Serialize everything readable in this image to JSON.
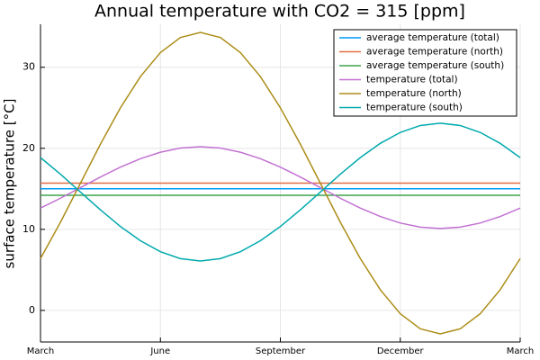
{
  "chart_data": {
    "type": "line",
    "title": "Annual temperature with CO2 = 315 [ppm]",
    "y_label": "surface temperature [°C]",
    "x": [
      0,
      0.5,
      1,
      1.5,
      2,
      2.5,
      3,
      3.5,
      4,
      4.5,
      5,
      5.5,
      6,
      6.5,
      7,
      7.5,
      8,
      8.5,
      9,
      9.5,
      10,
      10.5,
      11,
      11.5,
      12
    ],
    "xlim": [
      0,
      12
    ],
    "xticks": [
      {
        "value": 0,
        "label": "March"
      },
      {
        "value": 3,
        "label": "June"
      },
      {
        "value": 6,
        "label": "September"
      },
      {
        "value": 9,
        "label": "December"
      },
      {
        "value": 12,
        "label": "March"
      }
    ],
    "ylim": [
      -3.9,
      35.3
    ],
    "yticks": [
      0,
      10,
      20,
      30
    ],
    "grid": true,
    "legend": "top-right",
    "series": [
      {
        "name": "average temperature (total)",
        "color": "#009af9",
        "values": [
          15.0,
          15.0,
          15.0,
          15.0,
          15.0,
          15.0,
          15.0,
          15.0,
          15.0,
          15.0,
          15.0,
          15.0,
          15.0,
          15.0,
          15.0,
          15.0,
          15.0,
          15.0,
          15.0,
          15.0,
          15.0,
          15.0,
          15.0,
          15.0,
          15.0
        ]
      },
      {
        "name": "average temperature (north)",
        "color": "#e26f46",
        "values": [
          15.7,
          15.7,
          15.7,
          15.7,
          15.7,
          15.7,
          15.7,
          15.7,
          15.7,
          15.7,
          15.7,
          15.7,
          15.7,
          15.7,
          15.7,
          15.7,
          15.7,
          15.7,
          15.7,
          15.7,
          15.7,
          15.7,
          15.7,
          15.7,
          15.7
        ]
      },
      {
        "name": "average temperature (south)",
        "color": "#3da44d",
        "values": [
          14.2,
          14.2,
          14.2,
          14.2,
          14.2,
          14.2,
          14.2,
          14.2,
          14.2,
          14.2,
          14.2,
          14.2,
          14.2,
          14.2,
          14.2,
          14.2,
          14.2,
          14.2,
          14.2,
          14.2,
          14.2,
          14.2,
          14.2,
          14.2,
          14.2
        ]
      },
      {
        "name": "temperature (total)",
        "color": "#c271d2",
        "values": [
          12.63,
          13.84,
          15.15,
          16.46,
          17.68,
          18.72,
          19.52,
          20.03,
          20.2,
          20.03,
          19.52,
          18.72,
          17.68,
          16.46,
          15.15,
          13.84,
          12.63,
          11.58,
          10.78,
          10.27,
          10.1,
          10.27,
          10.78,
          11.58,
          12.63
        ]
      },
      {
        "name": "temperature (north)",
        "color": "#ac8d18",
        "values": [
          6.4,
          10.88,
          15.7,
          20.52,
          25.0,
          28.85,
          31.81,
          33.67,
          34.3,
          33.67,
          31.81,
          28.85,
          25.0,
          20.52,
          15.7,
          10.88,
          6.4,
          2.55,
          -0.41,
          -2.27,
          -2.9,
          -2.27,
          -0.41,
          2.55,
          6.4
        ]
      },
      {
        "name": "temperature (south)",
        "color": "#00a9ad",
        "values": [
          18.85,
          16.8,
          14.6,
          12.4,
          10.35,
          8.59,
          7.24,
          6.39,
          6.1,
          6.39,
          7.24,
          8.59,
          10.35,
          12.4,
          14.6,
          16.8,
          18.85,
          20.61,
          21.96,
          22.81,
          23.1,
          22.81,
          21.96,
          20.61,
          18.85
        ]
      }
    ]
  }
}
